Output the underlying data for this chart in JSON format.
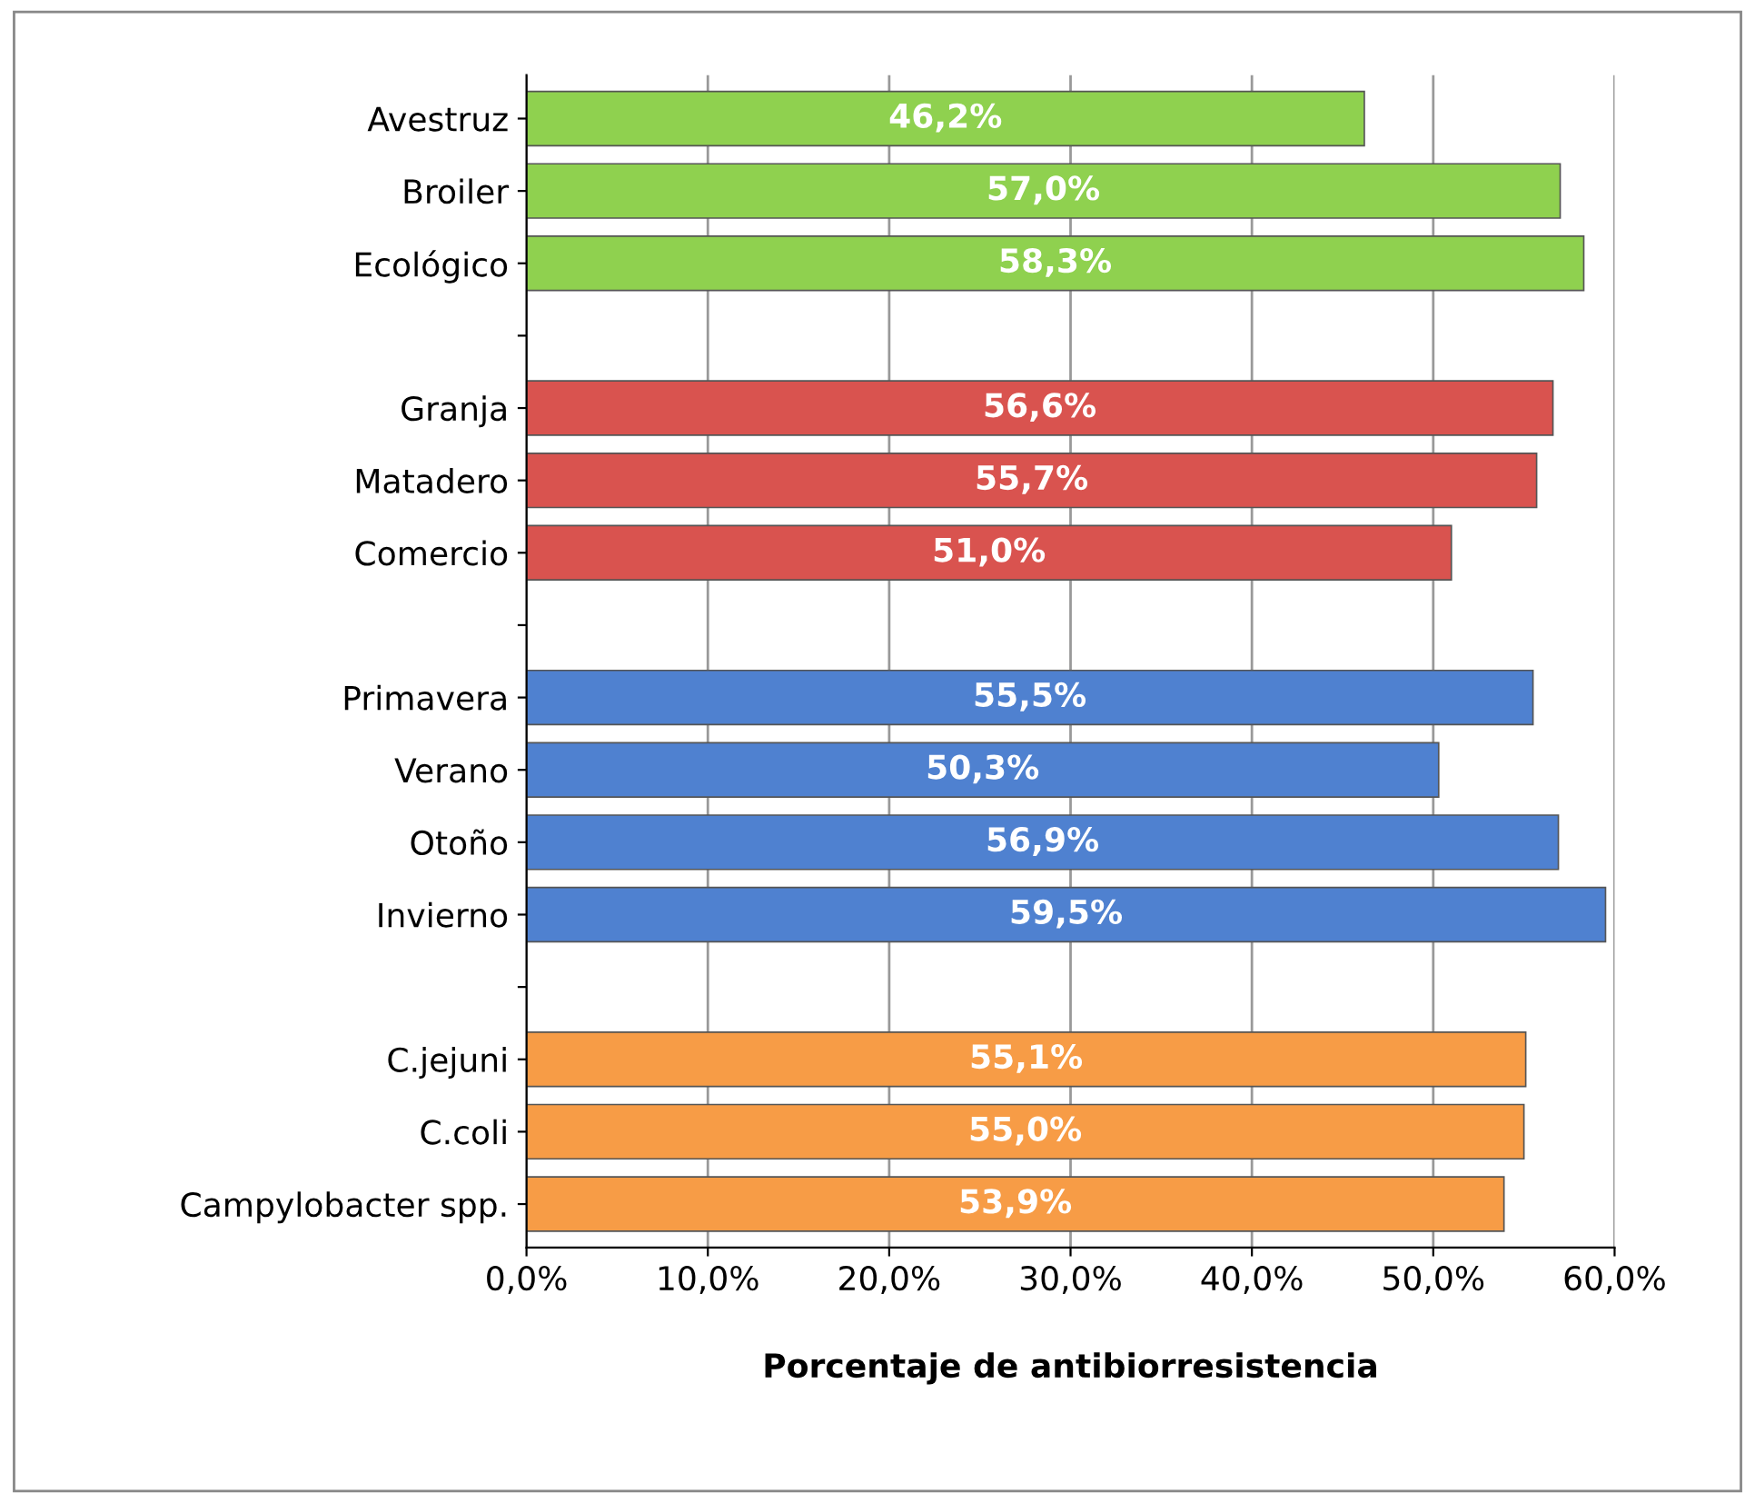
{
  "chart_data": {
    "type": "bar",
    "orientation": "horizontal",
    "xlabel": "Porcentaje de antibiorresistencia",
    "categories": [
      "Avestruz",
      "Broiler",
      "Ecológico",
      null,
      "Granja",
      "Matadero",
      "Comercio",
      null,
      "Primavera",
      "Verano",
      "Otoño",
      "Invierno",
      null,
      "C.jejuni",
      "C.coli",
      "Campylobacter spp."
    ],
    "values": [
      46.2,
      57.0,
      58.3,
      null,
      56.6,
      55.7,
      51.0,
      null,
      55.5,
      50.3,
      56.9,
      59.5,
      null,
      55.1,
      55.0,
      53.9
    ],
    "value_labels": [
      "46,2%",
      "57,0%",
      "58,3%",
      null,
      "56,6%",
      "55,7%",
      "51,0%",
      null,
      "55,5%",
      "50,3%",
      "56,9%",
      "59,5%",
      null,
      "55,1%",
      "55,0%",
      "53,9%"
    ],
    "colors": [
      "#8fd14f",
      "#8fd14f",
      "#8fd14f",
      null,
      "#d9534f",
      "#d9534f",
      "#d9534f",
      null,
      "#4f81d0",
      "#4f81d0",
      "#4f81d0",
      "#4f81d0",
      null,
      "#f79c46",
      "#f79c46",
      "#f79c46"
    ],
    "xlim": [
      0,
      60
    ],
    "xticks": [
      {
        "value": 0,
        "label": "0,0%"
      },
      {
        "value": 10,
        "label": "10,0%"
      },
      {
        "value": 20,
        "label": "20,0%"
      },
      {
        "value": 30,
        "label": "30,0%"
      },
      {
        "value": 40,
        "label": "40,0%"
      },
      {
        "value": 50,
        "label": "50,0%"
      },
      {
        "value": 60,
        "label": "60,0%"
      }
    ],
    "grid": "x",
    "legend": false
  }
}
